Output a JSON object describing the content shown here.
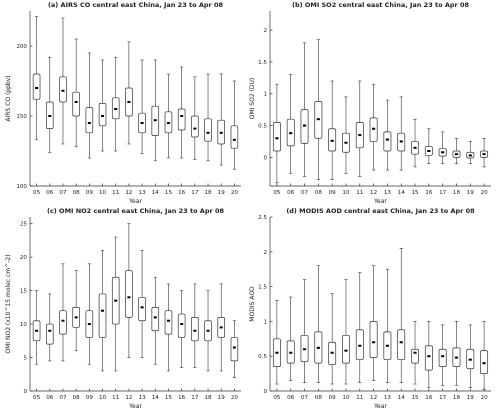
{
  "chart_data": [
    {
      "type": "box",
      "title": "(a) AIRS CO central east China, Jan 23  to Apr 08",
      "xlabel": "Year",
      "ylabel": "AIRS CO (ppbv)",
      "categories": [
        "05",
        "06",
        "07",
        "08",
        "09",
        "10",
        "11",
        "12",
        "13",
        "14",
        "15",
        "16",
        "17",
        "18",
        "19",
        "20"
      ],
      "ylim": [
        100,
        225
      ],
      "yticks": [
        100,
        150,
        200
      ],
      "ytick_labels": [
        "100",
        "150",
        "200"
      ],
      "boxes": [
        {
          "min": 133,
          "q1": 162,
          "median": 170,
          "q3": 180,
          "max": 221
        },
        {
          "min": 124,
          "q1": 141,
          "median": 150,
          "q3": 160,
          "max": 192
        },
        {
          "min": 130,
          "q1": 160,
          "median": 168,
          "q3": 178,
          "max": 220
        },
        {
          "min": 128,
          "q1": 150,
          "median": 160,
          "q3": 167,
          "max": 205
        },
        {
          "min": 120,
          "q1": 138,
          "median": 145,
          "q3": 156,
          "max": 195
        },
        {
          "min": 125,
          "q1": 143,
          "median": 150,
          "q3": 159,
          "max": 190
        },
        {
          "min": 125,
          "q1": 148,
          "median": 155,
          "q3": 163,
          "max": 192
        },
        {
          "min": 130,
          "q1": 150,
          "median": 160,
          "q3": 170,
          "max": 203
        },
        {
          "min": 123,
          "q1": 138,
          "median": 145,
          "q3": 152,
          "max": 190
        },
        {
          "min": 118,
          "q1": 136,
          "median": 147,
          "q3": 157,
          "max": 190
        },
        {
          "min": 120,
          "q1": 138,
          "median": 145,
          "q3": 153,
          "max": 180
        },
        {
          "min": 120,
          "q1": 140,
          "median": 150,
          "q3": 155,
          "max": 185
        },
        {
          "min": 119,
          "q1": 135,
          "median": 141,
          "q3": 150,
          "max": 178
        },
        {
          "min": 118,
          "q1": 132,
          "median": 138,
          "q3": 148,
          "max": 180
        },
        {
          "min": 115,
          "q1": 130,
          "median": 138,
          "q3": 147,
          "max": 180
        },
        {
          "min": 112,
          "q1": 127,
          "median": 133,
          "q3": 143,
          "max": 175
        }
      ]
    },
    {
      "type": "box",
      "title": "(b) OMI SO2 central east China, Jan 23  to Apr 08",
      "xlabel": "Year",
      "ylabel": "OMI SO2 (DU)",
      "categories": [
        "05",
        "06",
        "07",
        "08",
        "09",
        "10",
        "11",
        "12",
        "13",
        "14",
        "15",
        "16",
        "17",
        "18",
        "19",
        "20"
      ],
      "ylim": [
        -0.45,
        2.3
      ],
      "yticks": [
        0,
        0.5,
        1,
        1.5,
        2
      ],
      "ytick_labels": [
        "0",
        "0.5",
        "1",
        "1.5",
        "2"
      ],
      "boxes": [
        {
          "min": -0.4,
          "q1": 0.1,
          "median": 0.3,
          "q3": 0.55,
          "max": 1.15
        },
        {
          "min": -0.25,
          "q1": 0.18,
          "median": 0.38,
          "q3": 0.6,
          "max": 1.3
        },
        {
          "min": -0.3,
          "q1": 0.22,
          "median": 0.5,
          "q3": 0.75,
          "max": 1.8
        },
        {
          "min": -0.35,
          "q1": 0.3,
          "median": 0.6,
          "q3": 0.88,
          "max": 1.85
        },
        {
          "min": -0.35,
          "q1": 0.1,
          "median": 0.26,
          "q3": 0.45,
          "max": 1.2
        },
        {
          "min": -0.25,
          "q1": 0.08,
          "median": 0.23,
          "q3": 0.38,
          "max": 0.95
        },
        {
          "min": -0.3,
          "q1": 0.15,
          "median": 0.35,
          "q3": 0.55,
          "max": 1.2
        },
        {
          "min": -0.2,
          "q1": 0.25,
          "median": 0.45,
          "q3": 0.62,
          "max": 1.15
        },
        {
          "min": -0.2,
          "q1": 0.1,
          "median": 0.28,
          "q3": 0.4,
          "max": 0.9
        },
        {
          "min": -0.2,
          "q1": 0.1,
          "median": 0.25,
          "q3": 0.38,
          "max": 0.95
        },
        {
          "min": -0.15,
          "q1": 0.05,
          "median": 0.15,
          "q3": 0.25,
          "max": 0.6
        },
        {
          "min": -0.1,
          "q1": 0.03,
          "median": 0.1,
          "q3": 0.17,
          "max": 0.45
        },
        {
          "min": -0.1,
          "q1": 0.02,
          "median": 0.08,
          "q3": 0.14,
          "max": 0.4
        },
        {
          "min": -0.1,
          "q1": 0.0,
          "median": 0.05,
          "q3": 0.1,
          "max": 0.3
        },
        {
          "min": -0.1,
          "q1": -0.01,
          "median": 0.03,
          "q3": 0.08,
          "max": 0.25
        },
        {
          "min": -0.15,
          "q1": 0.0,
          "median": 0.05,
          "q3": 0.1,
          "max": 0.3
        }
      ]
    },
    {
      "type": "box",
      "title": "(c) OMI NO2 central east China, Jan 23  to Apr 08",
      "xlabel": "Year",
      "ylabel": "OMI NO2 (x10^15 molec cm^-2)",
      "categories": [
        "05",
        "06",
        "07",
        "08",
        "09",
        "10",
        "11",
        "12",
        "13",
        "14",
        "15",
        "16",
        "17",
        "18",
        "19",
        "20"
      ],
      "ylim": [
        0,
        26
      ],
      "yticks": [
        0,
        5,
        10,
        15,
        20,
        25
      ],
      "ytick_labels": [
        "0",
        "5",
        "10",
        "15",
        "20",
        "25"
      ],
      "boxes": [
        {
          "min": 4,
          "q1": 7.5,
          "median": 9,
          "q3": 10.5,
          "max": 15
        },
        {
          "min": 4.5,
          "q1": 7,
          "median": 9,
          "q3": 10,
          "max": 14.5
        },
        {
          "min": 4.5,
          "q1": 8.5,
          "median": 10.5,
          "q3": 12,
          "max": 19
        },
        {
          "min": 6,
          "q1": 9.5,
          "median": 11,
          "q3": 12.5,
          "max": 18
        },
        {
          "min": 4,
          "q1": 8,
          "median": 10,
          "q3": 12,
          "max": 19
        },
        {
          "min": 3,
          "q1": 8,
          "median": 12,
          "q3": 14.5,
          "max": 21
        },
        {
          "min": 3,
          "q1": 10,
          "median": 13.5,
          "q3": 17,
          "max": 23
        },
        {
          "min": 5,
          "q1": 11,
          "median": 14,
          "q3": 18,
          "max": 25
        },
        {
          "min": 5,
          "q1": 10.5,
          "median": 12.5,
          "q3": 14,
          "max": 21
        },
        {
          "min": 4,
          "q1": 9,
          "median": 11,
          "q3": 12.5,
          "max": 17
        },
        {
          "min": 3,
          "q1": 8.5,
          "median": 10.5,
          "q3": 12,
          "max": 16
        },
        {
          "min": 3.5,
          "q1": 8,
          "median": 10,
          "q3": 11.5,
          "max": 15
        },
        {
          "min": 3.5,
          "q1": 7.5,
          "median": 9,
          "q3": 11,
          "max": 16
        },
        {
          "min": 3,
          "q1": 7.5,
          "median": 9,
          "q3": 10.5,
          "max": 15
        },
        {
          "min": 3,
          "q1": 8,
          "median": 9.5,
          "q3": 11,
          "max": 16
        },
        {
          "min": 2,
          "q1": 4.5,
          "median": 6.5,
          "q3": 8,
          "max": 10.5
        }
      ]
    },
    {
      "type": "box",
      "title": "(d) MODIS AOD central east China, Jan 23  to Apr 08",
      "xlabel": "Year",
      "ylabel": "MODIS AOD",
      "categories": [
        "05",
        "06",
        "07",
        "08",
        "09",
        "10",
        "11",
        "12",
        "13",
        "14",
        "15",
        "16",
        "17",
        "18",
        "19",
        "20"
      ],
      "ylim": [
        0,
        2.5
      ],
      "yticks": [
        0,
        0.5,
        1,
        1.5,
        2,
        2.5
      ],
      "ytick_labels": [
        "0",
        "0.5",
        "1",
        "1.5",
        "2",
        "2.5"
      ],
      "boxes": [
        {
          "min": 0.1,
          "q1": 0.35,
          "median": 0.55,
          "q3": 0.75,
          "max": 1.3
        },
        {
          "min": 0.15,
          "q1": 0.4,
          "median": 0.55,
          "q3": 0.72,
          "max": 1.35
        },
        {
          "min": 0.12,
          "q1": 0.42,
          "median": 0.6,
          "q3": 0.8,
          "max": 1.6
        },
        {
          "min": 0.12,
          "q1": 0.4,
          "median": 0.62,
          "q3": 0.85,
          "max": 1.8
        },
        {
          "min": 0.1,
          "q1": 0.38,
          "median": 0.55,
          "q3": 0.7,
          "max": 1.4
        },
        {
          "min": 0.1,
          "q1": 0.4,
          "median": 0.58,
          "q3": 0.8,
          "max": 1.6
        },
        {
          "min": 0.12,
          "q1": 0.45,
          "median": 0.65,
          "q3": 0.88,
          "max": 1.7
        },
        {
          "min": 0.15,
          "q1": 0.48,
          "median": 0.7,
          "q3": 1.0,
          "max": 1.8
        },
        {
          "min": 0.12,
          "q1": 0.45,
          "median": 0.65,
          "q3": 0.85,
          "max": 1.75
        },
        {
          "min": 0.12,
          "q1": 0.45,
          "median": 0.7,
          "q3": 0.88,
          "max": 2.05
        },
        {
          "min": 0.1,
          "q1": 0.4,
          "median": 0.55,
          "q3": 0.6,
          "max": 1.0
        },
        {
          "min": 0.05,
          "q1": 0.3,
          "median": 0.5,
          "q3": 0.65,
          "max": 1.0
        },
        {
          "min": 0.08,
          "q1": 0.35,
          "median": 0.5,
          "q3": 0.6,
          "max": 0.95
        },
        {
          "min": 0.08,
          "q1": 0.35,
          "median": 0.48,
          "q3": 0.62,
          "max": 1.0
        },
        {
          "min": 0.05,
          "q1": 0.32,
          "median": 0.45,
          "q3": 0.6,
          "max": 0.95
        },
        {
          "min": 0.02,
          "q1": 0.25,
          "median": 0.4,
          "q3": 0.58,
          "max": 1.0
        }
      ]
    }
  ]
}
